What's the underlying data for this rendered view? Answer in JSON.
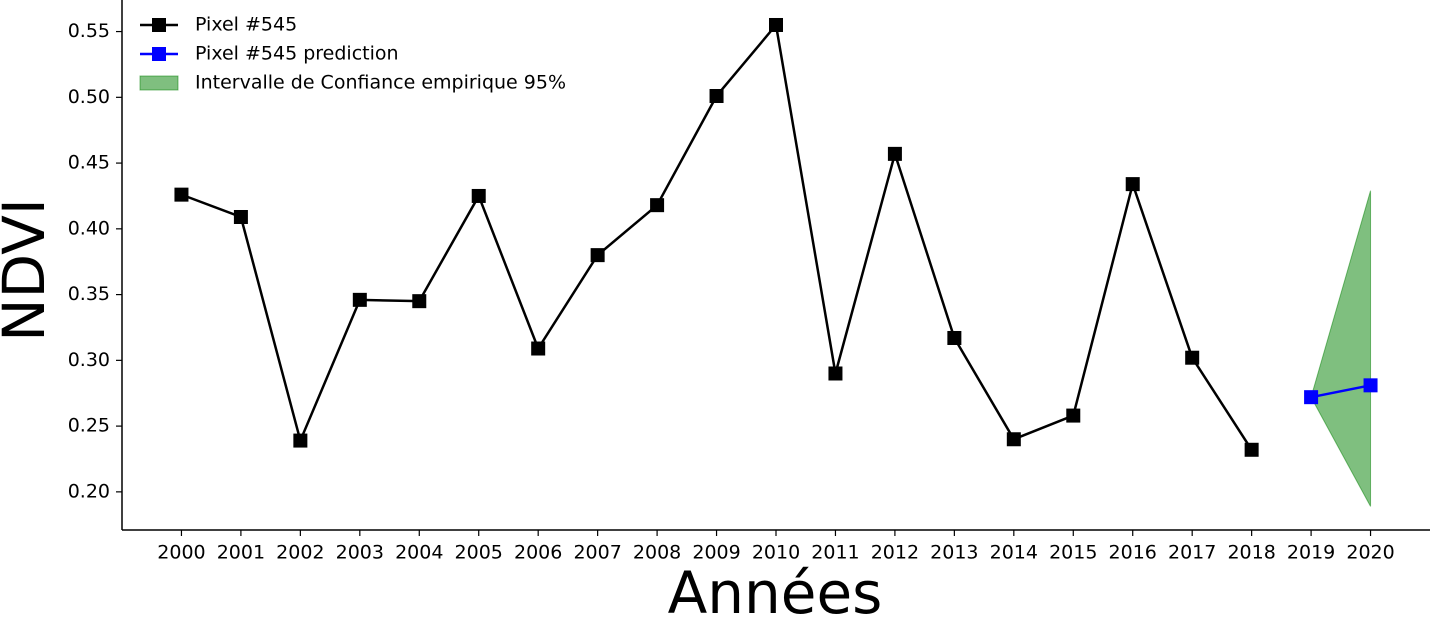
{
  "chart_data": {
    "type": "line",
    "x": [
      2000,
      2001,
      2002,
      2003,
      2004,
      2005,
      2006,
      2007,
      2008,
      2009,
      2010,
      2011,
      2012,
      2013,
      2014,
      2015,
      2016,
      2017,
      2018,
      2019,
      2020
    ],
    "series": [
      {
        "name": "Pixel #545",
        "color": "#000000",
        "values": [
          0.426,
          0.409,
          0.239,
          0.346,
          0.345,
          0.425,
          0.309,
          0.38,
          0.418,
          0.501,
          0.555,
          0.29,
          0.457,
          0.317,
          0.24,
          0.258,
          0.434,
          0.302,
          0.232,
          null,
          null
        ]
      },
      {
        "name": "Pixel #545 prediction",
        "color": "#0000ff",
        "values": [
          null,
          null,
          null,
          null,
          null,
          null,
          null,
          null,
          null,
          null,
          null,
          null,
          null,
          null,
          null,
          null,
          null,
          null,
          null,
          0.272,
          0.281
        ]
      }
    ],
    "band": {
      "name": "Intervalle de Confiance empirique 95%",
      "color": "#008000",
      "lower": [
        null,
        null,
        null,
        null,
        null,
        null,
        null,
        null,
        null,
        null,
        null,
        null,
        null,
        null,
        null,
        null,
        null,
        null,
        null,
        0.272,
        0.189
      ],
      "upper": [
        null,
        null,
        null,
        null,
        null,
        null,
        null,
        null,
        null,
        null,
        null,
        null,
        null,
        null,
        null,
        null,
        null,
        null,
        null,
        0.272,
        0.429
      ]
    },
    "xlabel": "Années",
    "ylabel": "NDVI",
    "xlim": [
      1999,
      2021
    ],
    "xticks": [
      2000,
      2001,
      2002,
      2003,
      2004,
      2005,
      2006,
      2007,
      2008,
      2009,
      2010,
      2011,
      2012,
      2013,
      2014,
      2015,
      2016,
      2017,
      2018,
      2019,
      2020
    ],
    "ylim": [
      0.171,
      0.574
    ],
    "yticks": [
      {
        "value": 0.2,
        "label": "0.20"
      },
      0.25,
      {
        "value": 0.3,
        "label": "0.30"
      },
      0.35,
      {
        "value": 0.4,
        "label": "0.40"
      },
      0.45,
      {
        "value": 0.5,
        "label": "0.50"
      },
      0.55
    ],
    "legend": "upper left"
  }
}
